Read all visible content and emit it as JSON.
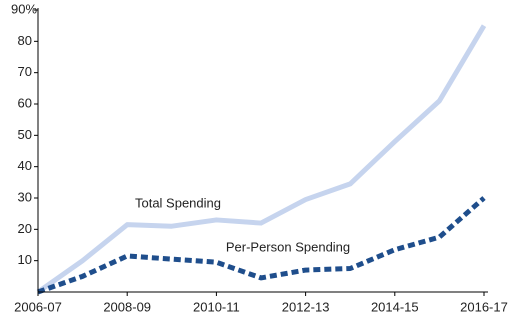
{
  "chart_data": {
    "type": "line",
    "categories": [
      "2006-07",
      null,
      "2008-09",
      null,
      "2010-11",
      null,
      "2012-13",
      null,
      "2014-15",
      null,
      "2016-17"
    ],
    "series": [
      {
        "name": "Total Spending",
        "color": "#c6d4ee",
        "dashed": false,
        "values": [
          0,
          10,
          21.5,
          21,
          23,
          22,
          29.5,
          34.5,
          48,
          61,
          85
        ]
      },
      {
        "name": "Per-Person Spending",
        "color": "#1f4e8c",
        "dashed": true,
        "values": [
          0,
          5,
          11.5,
          10.5,
          9.5,
          4.5,
          7,
          7.5,
          13.5,
          17.5,
          30
        ]
      }
    ],
    "ylim": [
      0,
      90
    ],
    "yticks": [
      10,
      20,
      30,
      40,
      50,
      60,
      70,
      80,
      {
        "value": 90,
        "label": "90%"
      }
    ]
  }
}
